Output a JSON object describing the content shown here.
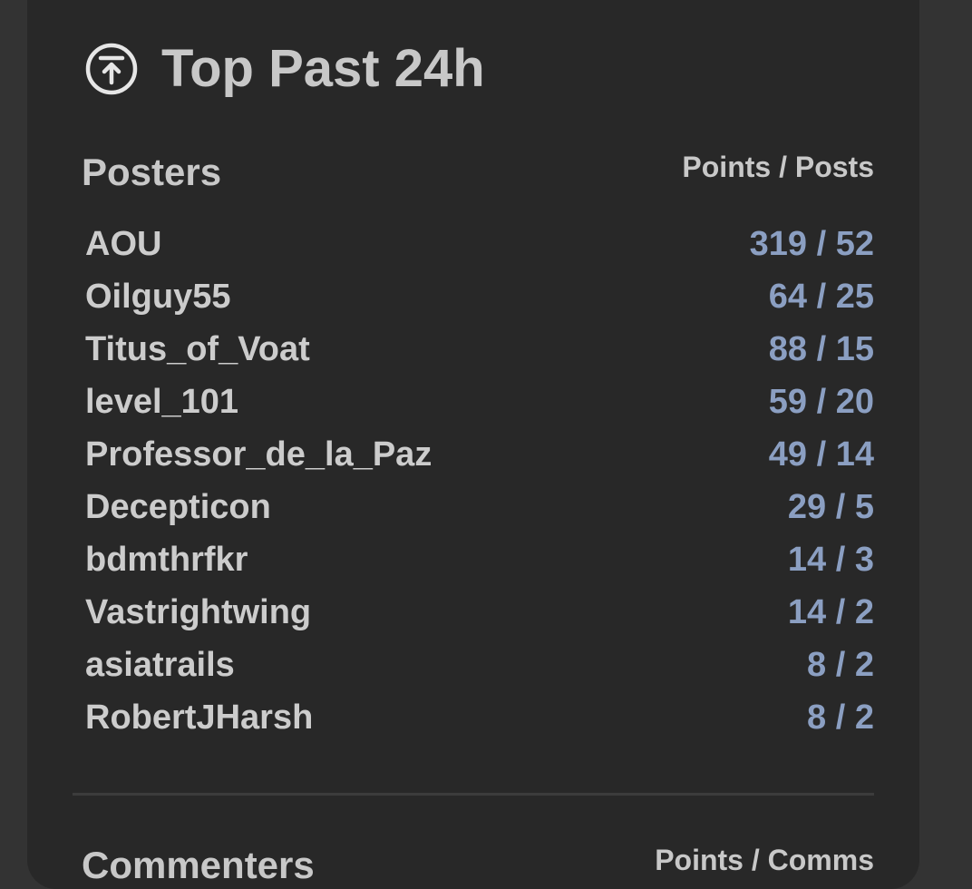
{
  "title": "Top Past 24h",
  "icon": "arrow-up-to-top-circle-icon",
  "colors": {
    "background": "#333333",
    "card": "#282828",
    "text": "#c8c8c8",
    "value": "#8b9fc2"
  },
  "posters": {
    "heading": "Posters",
    "columns": "Points / Posts",
    "rows": [
      {
        "name": "AOU",
        "value": "319 / 52"
      },
      {
        "name": "Oilguy55",
        "value": "64 / 25"
      },
      {
        "name": "Titus_of_Voat",
        "value": "88 / 15"
      },
      {
        "name": "level_101",
        "value": "59 / 20"
      },
      {
        "name": "Professor_de_la_Paz",
        "value": "49 / 14"
      },
      {
        "name": "Decepticon",
        "value": "29 / 5"
      },
      {
        "name": "bdmthrfkr",
        "value": "14 / 3"
      },
      {
        "name": "Vastrightwing",
        "value": "14 / 2"
      },
      {
        "name": "asiatrails",
        "value": "8 / 2"
      },
      {
        "name": "RobertJHarsh",
        "value": "8 / 2"
      }
    ]
  },
  "commenters": {
    "heading": "Commenters",
    "columns": "Points / Comms"
  }
}
